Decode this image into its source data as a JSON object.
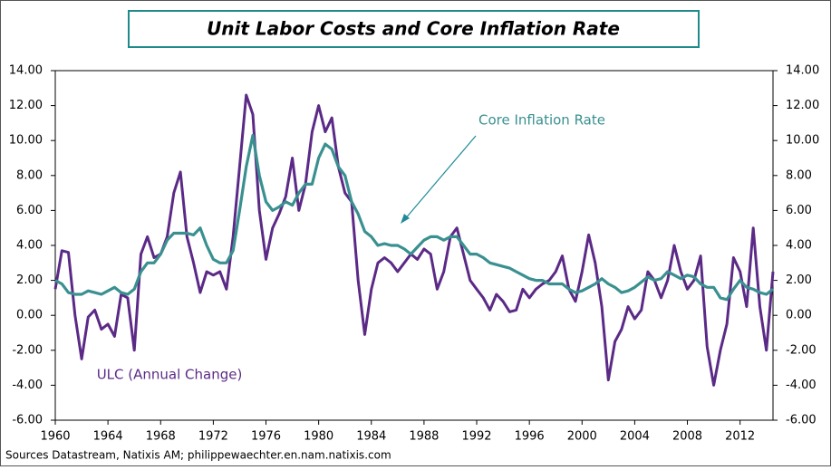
{
  "chart_data": {
    "type": "line",
    "title": "Unit Labor Costs and Core Inflation Rate",
    "source": "Sources Datastream, Natixis AM; philippewaechter.en.nam.natixis.com",
    "annotations": [
      "Core Inflation Rate",
      "ULC (Annual Change)"
    ],
    "x": [
      1960,
      1960.5,
      1961,
      1961.5,
      1962,
      1962.5,
      1963,
      1963.5,
      1964,
      1964.5,
      1965,
      1965.5,
      1966,
      1966.5,
      1967,
      1967.5,
      1968,
      1968.5,
      1969,
      1969.5,
      1970,
      1970.5,
      1971,
      1971.5,
      1972,
      1972.5,
      1973,
      1973.5,
      1974,
      1974.5,
      1975,
      1975.5,
      1976,
      1976.5,
      1977,
      1977.5,
      1978,
      1978.5,
      1979,
      1979.5,
      1980,
      1980.5,
      1981,
      1981.5,
      1982,
      1982.5,
      1983,
      1983.5,
      1984,
      1984.5,
      1985,
      1985.5,
      1986,
      1986.5,
      1987,
      1987.5,
      1988,
      1988.5,
      1989,
      1989.5,
      1990,
      1990.5,
      1991,
      1991.5,
      1992,
      1992.5,
      1993,
      1993.5,
      1994,
      1994.5,
      1995,
      1995.5,
      1996,
      1996.5,
      1997,
      1997.5,
      1998,
      1998.5,
      1999,
      1999.5,
      2000,
      2000.5,
      2001,
      2001.5,
      2002,
      2002.5,
      2003,
      2003.5,
      2004,
      2004.5,
      2005,
      2005.5,
      2006,
      2006.5,
      2007,
      2007.5,
      2008,
      2008.5,
      2009,
      2009.5,
      2010,
      2010.5,
      2011,
      2011.5,
      2012,
      2012.5,
      2013,
      2013.5,
      2014,
      2014.5
    ],
    "series": [
      {
        "name": "ULC (Annual Change)",
        "color": "#5b2a86",
        "values": [
          1.5,
          3.7,
          3.6,
          0.0,
          -2.5,
          -0.1,
          0.3,
          -0.8,
          -0.5,
          -1.2,
          1.2,
          1.0,
          -2.0,
          3.5,
          4.5,
          3.3,
          3.5,
          4.5,
          7.0,
          8.2,
          4.5,
          3.0,
          1.3,
          2.5,
          2.3,
          2.5,
          1.5,
          4.5,
          8.5,
          12.6,
          11.5,
          6.0,
          3.2,
          5.0,
          5.8,
          6.8,
          9.0,
          6.0,
          7.5,
          10.5,
          12.0,
          10.5,
          11.3,
          8.5,
          7.0,
          6.5,
          2.0,
          -1.1,
          1.5,
          3.0,
          3.3,
          3.0,
          2.5,
          3.0,
          3.5,
          3.2,
          3.8,
          3.5,
          1.5,
          2.5,
          4.5,
          5.0,
          3.5,
          2.0,
          1.5,
          1.0,
          0.3,
          1.2,
          0.8,
          0.2,
          0.3,
          1.5,
          1.0,
          1.5,
          1.8,
          2.0,
          2.5,
          3.4,
          1.5,
          0.8,
          2.5,
          4.6,
          3.0,
          0.5,
          -3.7,
          -1.5,
          -0.8,
          0.5,
          -0.2,
          0.3,
          2.5,
          2.0,
          1.0,
          2.0,
          4.0,
          2.5,
          1.5,
          2.0,
          3.4,
          -1.8,
          -4.0,
          -2.0,
          -0.5,
          3.3,
          2.5,
          0.5,
          5.0,
          0.5,
          -2.0,
          2.5
        ]
      },
      {
        "name": "Core Inflation Rate",
        "color": "#3a9090",
        "axis": "y2",
        "values": [
          2.0,
          1.8,
          1.3,
          1.2,
          1.2,
          1.4,
          1.3,
          1.2,
          1.4,
          1.6,
          1.3,
          1.2,
          1.5,
          2.5,
          3.0,
          3.0,
          3.5,
          4.3,
          4.7,
          4.7,
          4.7,
          4.6,
          5.0,
          4.0,
          3.2,
          3.0,
          3.0,
          3.7,
          6.0,
          8.5,
          10.3,
          8.0,
          6.5,
          6.0,
          6.2,
          6.5,
          6.3,
          7.0,
          7.5,
          7.5,
          9.0,
          9.8,
          9.5,
          8.5,
          8.0,
          6.5,
          5.8,
          4.8,
          4.5,
          4.0,
          4.1,
          4.0,
          4.0,
          3.8,
          3.5,
          3.9,
          4.3,
          4.5,
          4.5,
          4.3,
          4.5,
          4.5,
          4.0,
          3.5,
          3.5,
          3.3,
          3.0,
          2.9,
          2.8,
          2.7,
          2.5,
          2.3,
          2.1,
          2.0,
          2.0,
          1.8,
          1.8,
          1.8,
          1.5,
          1.3,
          1.4,
          1.6,
          1.8,
          2.1,
          1.8,
          1.6,
          1.3,
          1.4,
          1.6,
          1.9,
          2.2,
          2.0,
          2.1,
          2.5,
          2.3,
          2.1,
          2.3,
          2.2,
          1.8,
          1.6,
          1.6,
          1.0,
          0.9,
          1.5,
          2.0,
          1.6,
          1.5,
          1.3,
          1.2,
          1.5
        ]
      }
    ],
    "xlim": [
      1960,
      2014.5
    ],
    "xticks": [
      1960,
      1964,
      1968,
      1972,
      1976,
      1980,
      1984,
      1988,
      1992,
      1996,
      2000,
      2004,
      2008,
      2012
    ],
    "ylim": [
      -6,
      14
    ],
    "yticks": [
      {
        "value": -6,
        "label": "-6.00"
      },
      {
        "value": -4,
        "label": "-4.00"
      },
      {
        "value": -2,
        "label": "-2.00"
      },
      {
        "value": 0,
        "label": "0.00"
      },
      {
        "value": 2,
        "label": "2.00"
      },
      {
        "value": 4,
        "label": "4.00"
      },
      {
        "value": 6,
        "label": "6.00"
      },
      {
        "value": 8,
        "label": "8.00"
      },
      {
        "value": 10,
        "label": "10.00"
      },
      {
        "value": 12,
        "label": "12.00"
      },
      {
        "value": 14,
        "label": "14.00"
      }
    ],
    "y2lim": [
      -6,
      14
    ],
    "y2ticks": [
      {
        "value": -6,
        "label": "-6.00"
      },
      {
        "value": -4,
        "label": "-4.00"
      },
      {
        "value": -2,
        "label": "-2.00"
      },
      {
        "value": 0,
        "label": "0.00"
      },
      {
        "value": 2,
        "label": "2.00"
      },
      {
        "value": 4,
        "label": "4.00"
      },
      {
        "value": 6,
        "label": "6.00"
      },
      {
        "value": 8,
        "label": "8.00"
      },
      {
        "value": 10,
        "label": "10.00"
      },
      {
        "value": 12,
        "label": "12.00"
      },
      {
        "value": 14,
        "label": "14.00"
      }
    ]
  }
}
